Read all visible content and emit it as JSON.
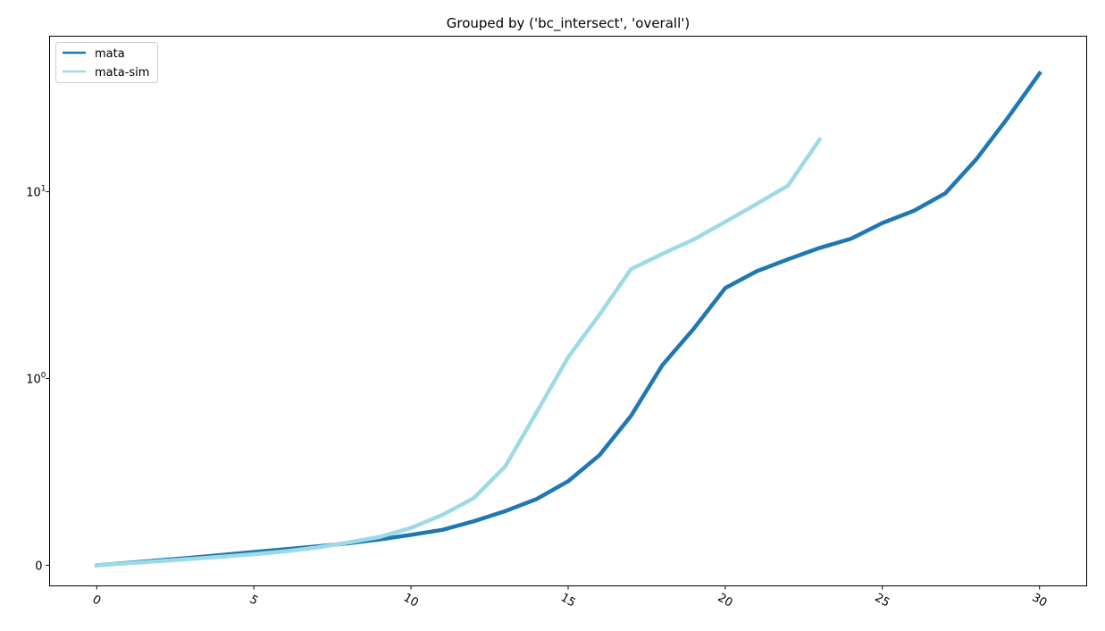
{
  "chart_data": {
    "type": "line",
    "title": "Grouped by ('bc_intersect', 'overall')",
    "xlabel": "",
    "ylabel": "",
    "xlim": [
      -1.5,
      31.5
    ],
    "yscale": "symlog",
    "ylim": [
      -0.11,
      68
    ],
    "x_ticks": [
      0,
      5,
      10,
      15,
      20,
      25,
      30
    ],
    "x_tick_labels": [
      "0",
      "5",
      "10",
      "15",
      "20",
      "25",
      "30"
    ],
    "x_tick_rotation_deg": 30,
    "y_ticks": [
      {
        "value": 0,
        "base": "0",
        "exp": ""
      },
      {
        "value": 1,
        "base": "10",
        "exp": "0"
      },
      {
        "value": 10,
        "base": "10",
        "exp": "1"
      }
    ],
    "grid": false,
    "legend_position": "upper left",
    "series": [
      {
        "name": "mata",
        "color": "#1f77b4",
        "x": [
          0,
          1,
          2,
          3,
          4,
          5,
          6,
          7,
          8,
          9,
          10,
          11,
          12,
          13,
          14,
          15,
          16,
          17,
          18,
          19,
          20,
          21,
          22,
          23,
          24,
          25,
          26,
          27,
          28,
          29,
          30
        ],
        "y": [
          0.0,
          0.013,
          0.027,
          0.041,
          0.056,
          0.071,
          0.086,
          0.101,
          0.118,
          0.139,
          0.163,
          0.19,
          0.236,
          0.29,
          0.355,
          0.45,
          0.59,
          0.8,
          1.18,
          1.85,
          3.05,
          3.75,
          4.35,
          5.0,
          5.6,
          6.8,
          7.9,
          9.8,
          15.0,
          25.0,
          43.0
        ]
      },
      {
        "name": "mata-sim",
        "color": "#9edae5",
        "x": [
          0,
          1,
          2,
          3,
          4,
          5,
          6,
          7,
          8,
          9,
          10,
          11,
          12,
          13,
          14,
          15,
          16,
          17,
          18,
          19,
          20,
          21,
          22,
          23
        ],
        "y": [
          0.0,
          0.011,
          0.022,
          0.034,
          0.046,
          0.059,
          0.075,
          0.095,
          0.122,
          0.152,
          0.2,
          0.27,
          0.36,
          0.53,
          0.82,
          1.3,
          2.2,
          3.85,
          4.65,
          5.55,
          6.9,
          8.6,
          10.8,
          19.0
        ]
      }
    ]
  }
}
